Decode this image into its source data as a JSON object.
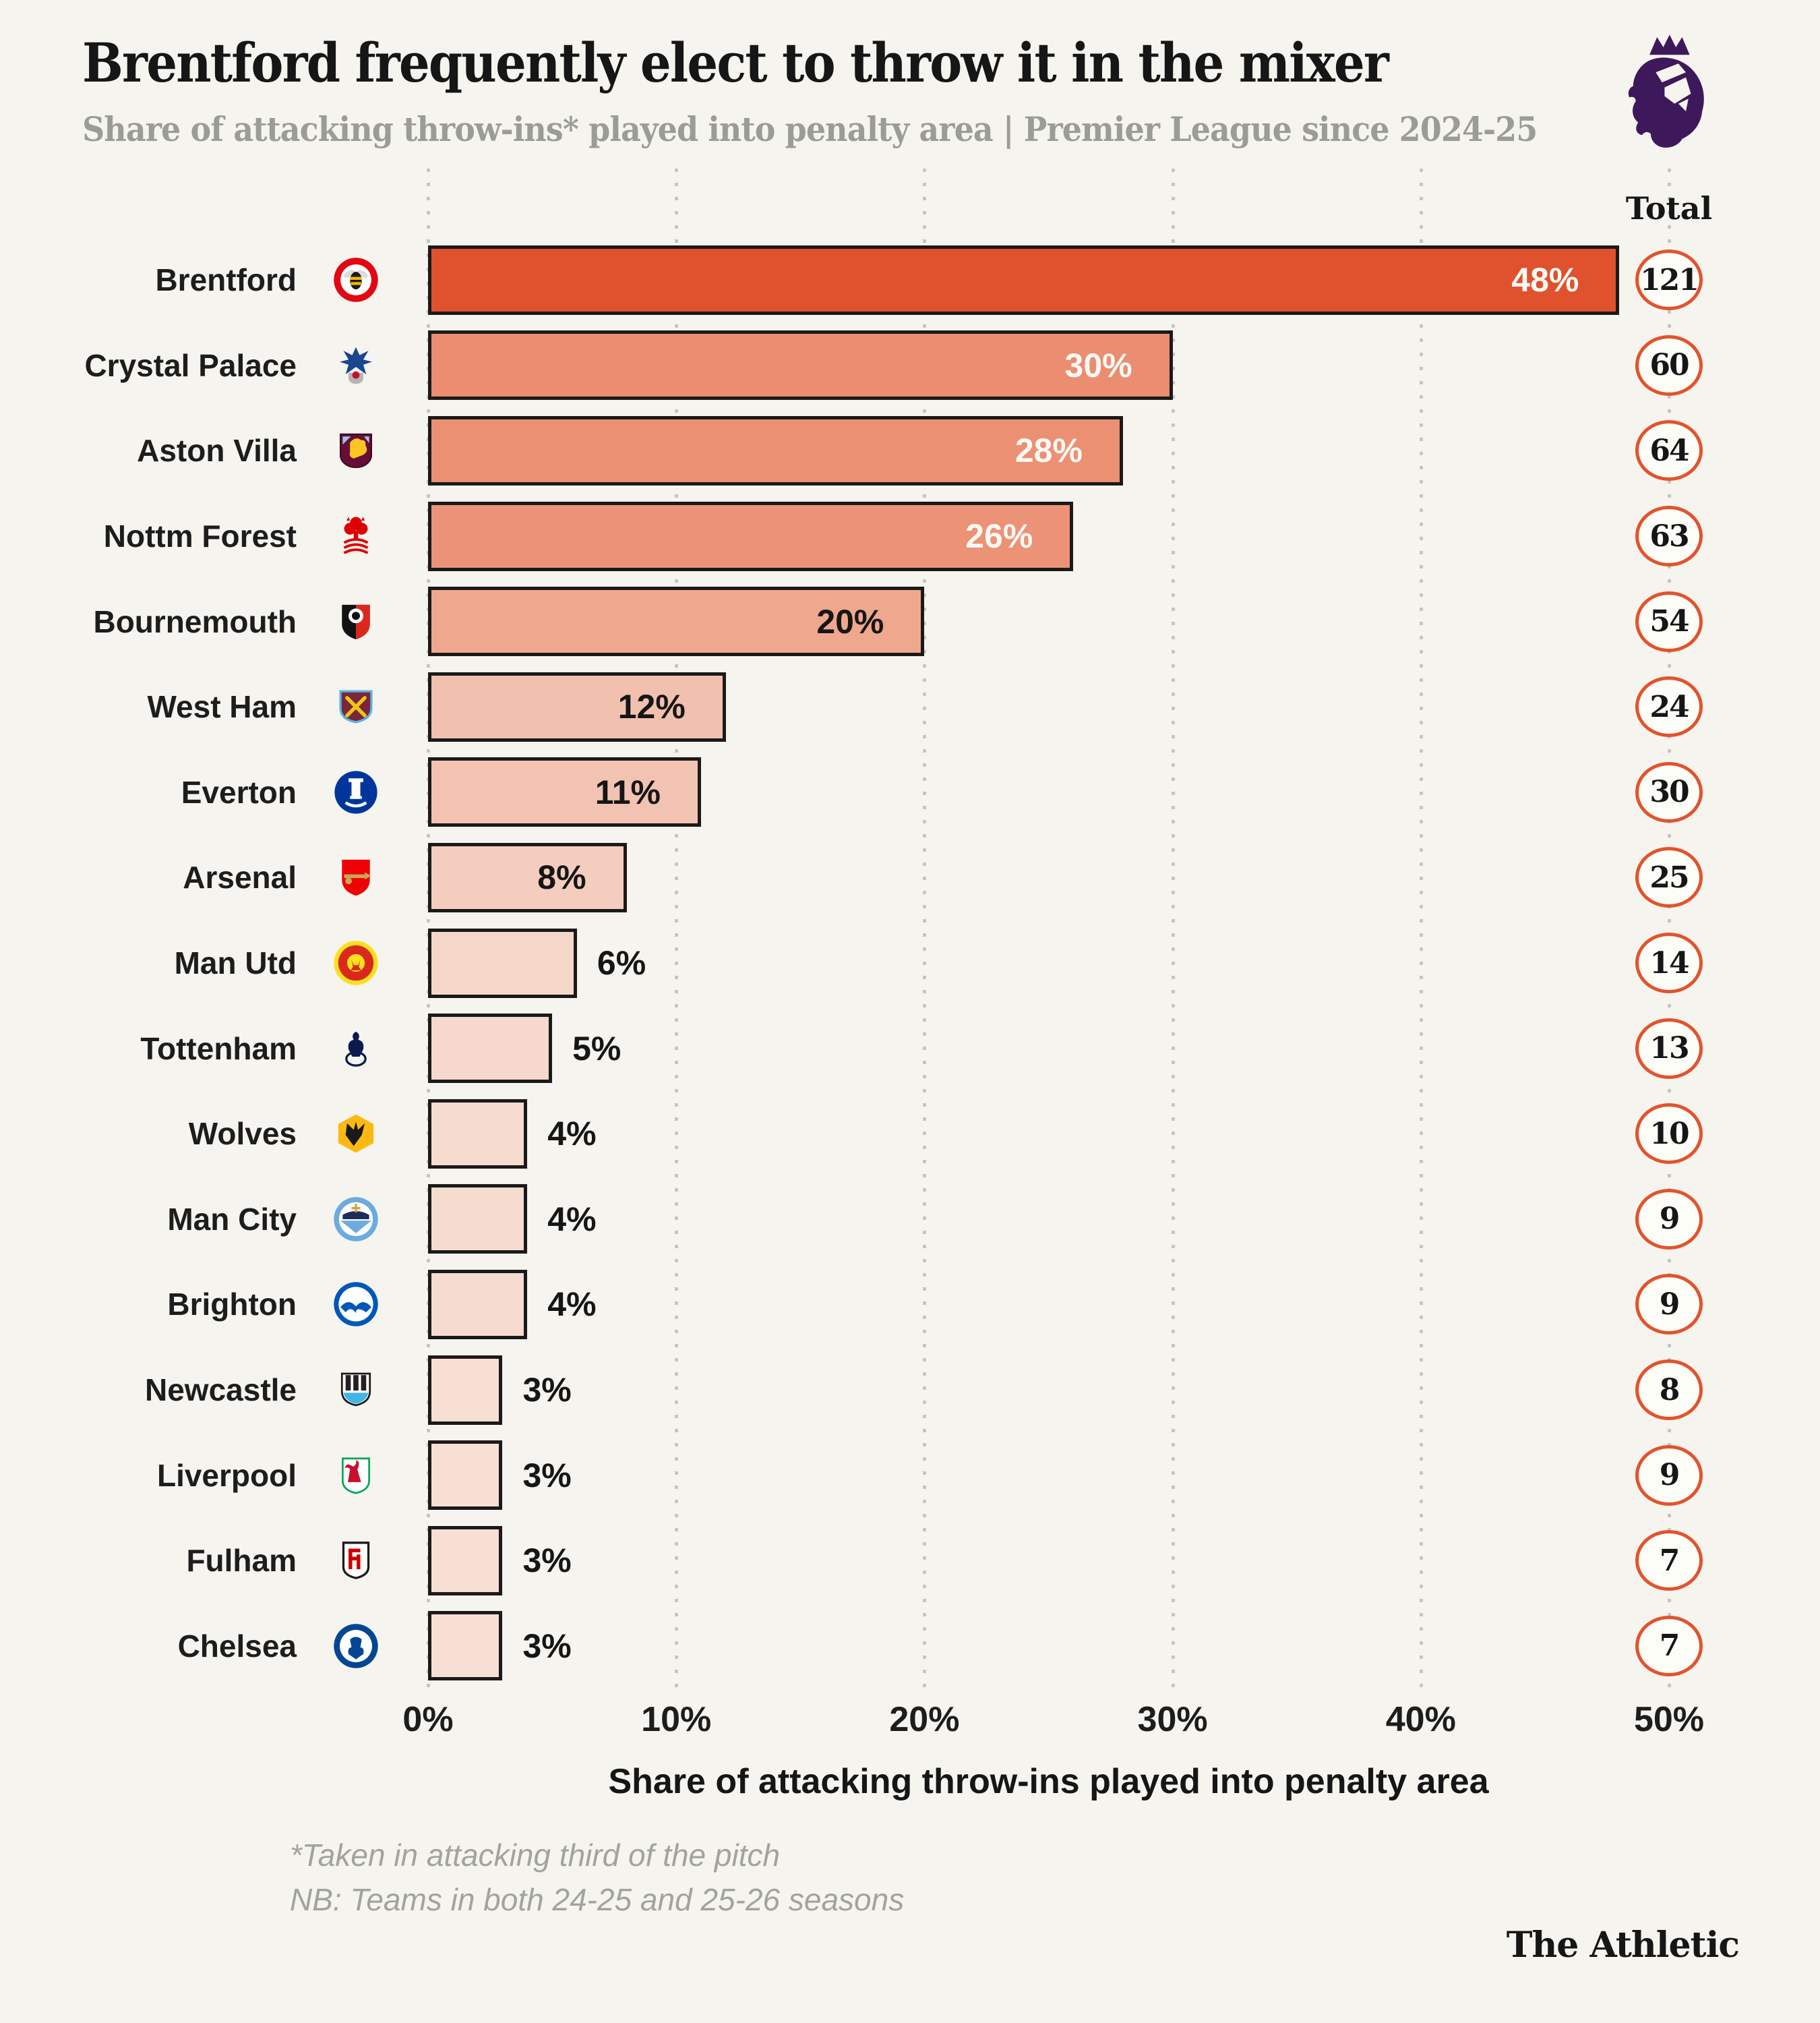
{
  "header": {
    "title": "Brentford frequently elect to throw it in the mixer",
    "subtitle": "Share of attacking throw-ins* played into penalty area | Premier League since 2024-25",
    "logo_icon": "premier-league-lion-icon"
  },
  "colors": {
    "background": "#F5F4EE",
    "accent": "#E0512D",
    "bar_border": "#1A1A1A",
    "circle_border": "#E2532E",
    "gridline": "#C6C6C0",
    "subtitle_gray": "#9C9C97",
    "footnote_gray": "#A3A39D",
    "inside_light_text": "#FAF9F4",
    "dark_text": "#161616",
    "premier_league_purple": "#3D195B"
  },
  "chart_data": {
    "type": "bar",
    "orientation": "horizontal",
    "title": "Brentford frequently elect to throw it in the mixer",
    "subtitle": "Share of attacking throw-ins* played into penalty area | Premier League since 2024-25",
    "xlabel": "Share of attacking throw-ins played into penalty area",
    "ylabel": "",
    "xlim": [
      0,
      50
    ],
    "grid": "dotted-vertical",
    "x_ticks": [
      "0%",
      "10%",
      "20%",
      "30%",
      "40%",
      "50%"
    ],
    "x_tick_values": [
      0,
      10,
      20,
      30,
      40,
      50
    ],
    "total_header": "Total",
    "categories": [
      "Brentford",
      "Crystal Palace",
      "Aston Villa",
      "Nottm Forest",
      "Bournemouth",
      "West Ham",
      "Everton",
      "Arsenal",
      "Man Utd",
      "Tottenham",
      "Wolves",
      "Man City",
      "Brighton",
      "Newcastle",
      "Liverpool",
      "Fulham",
      "Chelsea"
    ],
    "values": [
      48,
      30,
      28,
      26,
      20,
      12,
      11,
      8,
      6,
      5,
      4,
      4,
      4,
      3,
      3,
      3,
      3
    ],
    "totals": [
      121,
      60,
      64,
      63,
      54,
      24,
      30,
      25,
      14,
      13,
      10,
      9,
      9,
      8,
      9,
      7,
      7
    ],
    "teams": [
      {
        "label": "Brentford",
        "badge": "brentford",
        "value": 48,
        "value_label": "48%",
        "total": "121",
        "bar_color": "#E0512D",
        "label_style": "inside-light"
      },
      {
        "label": "Crystal Palace",
        "badge": "crystal-palace",
        "value": 30,
        "value_label": "30%",
        "total": "60",
        "bar_color": "#EB8D71",
        "label_style": "inside-light"
      },
      {
        "label": "Aston Villa",
        "badge": "aston-villa",
        "value": 28,
        "value_label": "28%",
        "total": "64",
        "bar_color": "#EC9074",
        "label_style": "inside-light"
      },
      {
        "label": "Nottm Forest",
        "badge": "nottm-forest",
        "value": 26,
        "value_label": "26%",
        "total": "63",
        "bar_color": "#EC9276",
        "label_style": "inside-light"
      },
      {
        "label": "Bournemouth",
        "badge": "bournemouth",
        "value": 20,
        "value_label": "20%",
        "total": "54",
        "bar_color": "#EFA88D",
        "label_style": "inside-dark"
      },
      {
        "label": "West Ham",
        "badge": "west-ham",
        "value": 12,
        "value_label": "12%",
        "total": "24",
        "bar_color": "#F2C0AE",
        "label_style": "inside-dark"
      },
      {
        "label": "Everton",
        "badge": "everton",
        "value": 11,
        "value_label": "11%",
        "total": "30",
        "bar_color": "#F2C3B2",
        "label_style": "inside-dark"
      },
      {
        "label": "Arsenal",
        "badge": "arsenal",
        "value": 8,
        "value_label": "8%",
        "total": "25",
        "bar_color": "#F4CDBE",
        "label_style": "inside-dark"
      },
      {
        "label": "Man Utd",
        "badge": "man-utd",
        "value": 6,
        "value_label": "6%",
        "total": "14",
        "bar_color": "#F5D7C9",
        "label_style": "outside"
      },
      {
        "label": "Tottenham",
        "badge": "tottenham",
        "value": 5,
        "value_label": "5%",
        "total": "13",
        "bar_color": "#F6D9CC",
        "label_style": "outside"
      },
      {
        "label": "Wolves",
        "badge": "wolves",
        "value": 4,
        "value_label": "4%",
        "total": "10",
        "bar_color": "#F6DBCF",
        "label_style": "outside"
      },
      {
        "label": "Man City",
        "badge": "man-city",
        "value": 4,
        "value_label": "4%",
        "total": "9",
        "bar_color": "#F6DBCF",
        "label_style": "outside"
      },
      {
        "label": "Brighton",
        "badge": "brighton",
        "value": 4,
        "value_label": "4%",
        "total": "9",
        "bar_color": "#F6DBCF",
        "label_style": "outside"
      },
      {
        "label": "Newcastle",
        "badge": "newcastle",
        "value": 3,
        "value_label": "3%",
        "total": "8",
        "bar_color": "#F7DFD4",
        "label_style": "outside"
      },
      {
        "label": "Liverpool",
        "badge": "liverpool",
        "value": 3,
        "value_label": "3%",
        "total": "9",
        "bar_color": "#F7DFD4",
        "label_style": "outside"
      },
      {
        "label": "Fulham",
        "badge": "fulham",
        "value": 3,
        "value_label": "3%",
        "total": "7",
        "bar_color": "#F7DFD4",
        "label_style": "outside"
      },
      {
        "label": "Chelsea",
        "badge": "chelsea",
        "value": 3,
        "value_label": "3%",
        "total": "7",
        "bar_color": "#F7DFD4",
        "label_style": "outside"
      }
    ]
  },
  "footer": {
    "footnote1": "*Taken in attacking third of the pitch",
    "footnote2": "NB: Teams in both 24-25 and 25-26 seasons",
    "credit": "The Athletic"
  }
}
